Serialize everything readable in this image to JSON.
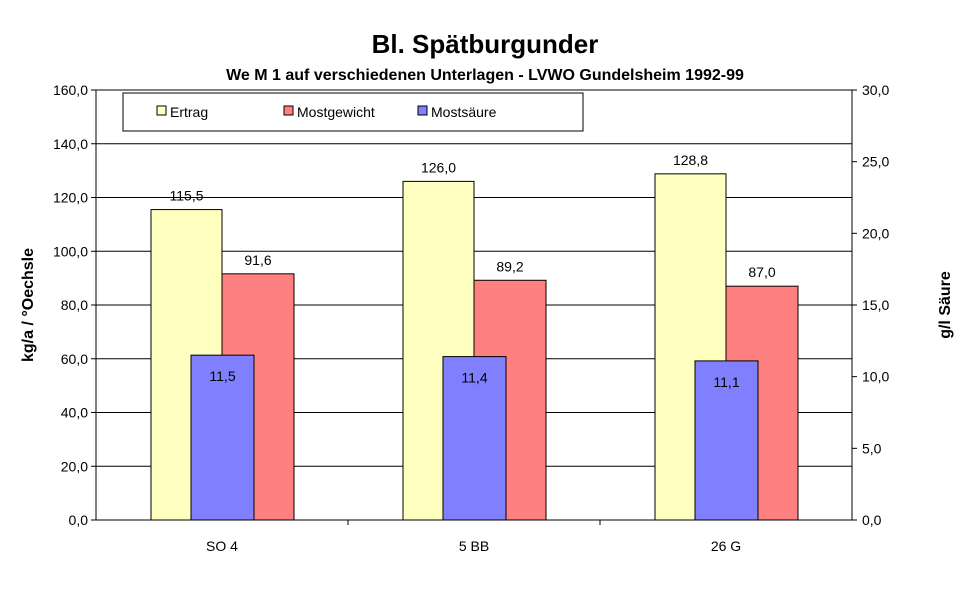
{
  "chart_data": {
    "type": "bar",
    "title": "Bl. Spätburgunder",
    "subtitle": "We M 1 auf verschiedenen Unterlagen - LVWO Gundelsheim 1992-99",
    "categories": [
      "SO 4",
      "5 BB",
      "26 G"
    ],
    "ylabel": "kg/a / °Oechsle",
    "y2label": "g/l Säure",
    "ylim": [
      0,
      160
    ],
    "y2lim": [
      0,
      30
    ],
    "yticks": [
      "0,0",
      "20,0",
      "40,0",
      "60,0",
      "80,0",
      "100,0",
      "120,0",
      "140,0",
      "160,0"
    ],
    "y2ticks": [
      "0,0",
      "5,0",
      "10,0",
      "15,0",
      "20,0",
      "25,0",
      "30,0"
    ],
    "grid": true,
    "legend_position": "top-left",
    "series": [
      {
        "name": "Ertrag",
        "axis": "left",
        "color": "#FFFFC0",
        "values": [
          115.5,
          126.0,
          128.8
        ],
        "labels": [
          "115,5",
          "126,0",
          "128,8"
        ]
      },
      {
        "name": "Mostgewicht",
        "axis": "left",
        "color": "#FF8080",
        "values": [
          91.6,
          89.2,
          87.0
        ],
        "labels": [
          "91,6",
          "89,2",
          "87,0"
        ]
      },
      {
        "name": "Mostsäure",
        "axis": "right",
        "color": "#8080FF",
        "values": [
          11.5,
          11.4,
          11.1
        ],
        "labels": [
          "11,5",
          "11,4",
          "11,1"
        ]
      }
    ]
  }
}
